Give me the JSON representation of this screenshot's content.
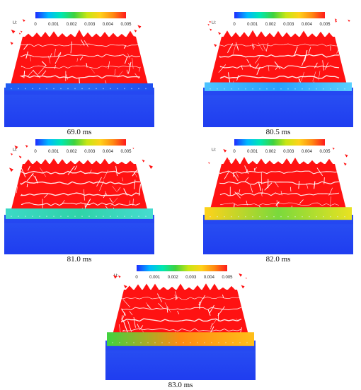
{
  "colorbar": {
    "symbol": "U:",
    "ticks": [
      "0",
      "0.001",
      "0.002",
      "0.003",
      "0.004",
      "0.005"
    ],
    "gradient": [
      "#1e2cff",
      "#00b8ff",
      "#00e8b0",
      "#3fd23f",
      "#c8e614",
      "#ffd21a",
      "#ff8a12",
      "#ff1a1a"
    ]
  },
  "colors": {
    "fragments": "#ff1212",
    "cracks": "#ffffff",
    "base_blue": "#1f3df0"
  },
  "panels": [
    {
      "time": "69.0 ms",
      "interface": [
        "#1f5cf2",
        "#2a6cf4",
        "#1f4ff0"
      ],
      "interface_level": 0.0
    },
    {
      "time": "80.5 ms",
      "interface": [
        "#4cc3ff",
        "#27a0ff",
        "#5ad0ff"
      ],
      "interface_level": 0.15
    },
    {
      "time": "81.0 ms",
      "interface": [
        "#3cd8c6",
        "#2fd3a8",
        "#46dcd0"
      ],
      "interface_level": 0.3
    },
    {
      "time": "82.0 ms",
      "interface": [
        "#ffd21a",
        "#7ad93c",
        "#e9e221"
      ],
      "interface_level": 0.5
    },
    {
      "time": "83.0 ms",
      "interface": [
        "#3fd23f",
        "#ff8a12",
        "#ffbf19"
      ],
      "interface_level": 0.6
    }
  ]
}
